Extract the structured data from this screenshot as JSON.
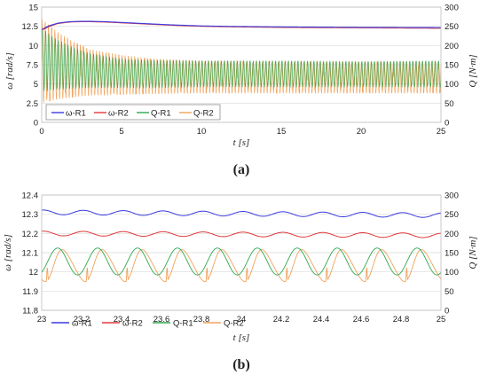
{
  "colors": {
    "omega_r1": "#3a3adf",
    "omega_r2": "#e0393a",
    "q_r1": "#2ea84f",
    "q_r2": "#f0a25a",
    "grid": "#d9d9d9"
  },
  "chart_data": [
    {
      "type": "line",
      "panel_label": "(a)",
      "xlabel": "t [s]",
      "ylabel_left": "ω [rad/s]",
      "ylabel_right": "Q [N·m]",
      "xlim": [
        0,
        25
      ],
      "ylim_left": [
        0,
        15
      ],
      "ylim_right": [
        0,
        300
      ],
      "x_ticks": [
        "0",
        "5",
        "10",
        "15",
        "20",
        "25"
      ],
      "y_left_ticks": [
        "0",
        "2.5",
        "5",
        "7.5",
        "10",
        "12.5",
        "15"
      ],
      "y_right_ticks": [
        "0",
        "50",
        "100",
        "150",
        "200",
        "250",
        "300"
      ],
      "grid": "horizontal",
      "legend_position": "bottom-left",
      "legend": [
        "ω-R1",
        "ω-R2",
        "Q-R1",
        "Q-R2"
      ],
      "series": [
        {
          "name": "ω-R1",
          "axis": "left",
          "x": [
            0,
            0.5,
            1,
            1.5,
            2,
            2.5,
            3,
            4,
            5,
            6,
            8,
            10,
            12,
            15,
            18,
            20,
            22,
            25
          ],
          "y": [
            12.1,
            12.6,
            12.9,
            13.05,
            13.12,
            13.15,
            13.15,
            13.1,
            13.0,
            12.9,
            12.7,
            12.55,
            12.48,
            12.42,
            12.38,
            12.36,
            12.35,
            12.33
          ]
        },
        {
          "name": "ω-R2",
          "axis": "left",
          "x": [
            0,
            0.5,
            1,
            1.5,
            2,
            2.5,
            3,
            4,
            5,
            6,
            8,
            10,
            12,
            15,
            18,
            20,
            22,
            25
          ],
          "y": [
            12.0,
            12.5,
            12.85,
            13.0,
            13.08,
            13.1,
            13.1,
            13.05,
            12.95,
            12.85,
            12.65,
            12.5,
            12.43,
            12.36,
            12.32,
            12.3,
            12.28,
            12.25
          ]
        },
        {
          "name": "Q-R1",
          "axis": "right",
          "envelope_t": [
            0,
            1,
            2,
            3,
            5,
            7,
            10,
            15,
            20,
            25
          ],
          "upper": [
            245,
            215,
            195,
            180,
            165,
            162,
            160,
            160,
            158,
            160
          ],
          "lower": [
            80,
            85,
            88,
            90,
            90,
            90,
            92,
            92,
            92,
            92
          ]
        },
        {
          "name": "Q-R2",
          "axis": "right",
          "envelope_t": [
            0,
            1,
            2,
            3,
            5,
            7,
            10,
            15,
            20,
            25
          ],
          "upper": [
            270,
            235,
            210,
            190,
            175,
            165,
            160,
            158,
            158,
            158
          ],
          "lower": [
            50,
            60,
            65,
            70,
            72,
            74,
            76,
            76,
            76,
            76
          ]
        }
      ]
    },
    {
      "type": "line",
      "panel_label": "(b)",
      "xlabel": "t [s]",
      "ylabel_left": "ω [rad/s]",
      "ylabel_right": "Q [N·m]",
      "xlim": [
        23,
        25
      ],
      "ylim_left": [
        11.8,
        12.4
      ],
      "ylim_right": [
        0,
        300
      ],
      "x_ticks": [
        "23",
        "23.2",
        "23.4",
        "23.6",
        "23.8",
        "24",
        "24.2",
        "24.4",
        "24.6",
        "24.8",
        "25"
      ],
      "y_left_ticks": [
        "11.8",
        "11.9",
        "12",
        "12.1",
        "12.2",
        "12.3",
        "12.4"
      ],
      "y_right_ticks": [
        "0",
        "50",
        "100",
        "150",
        "200",
        "250",
        "300"
      ],
      "grid": "horizontal",
      "legend_position": "bottom",
      "legend": [
        "ω-R1",
        "ω-R2",
        "Q-R1",
        "Q-R2"
      ],
      "oscillation_period_s": 0.2,
      "series": [
        {
          "name": "ω-R1",
          "axis": "left",
          "mean_start": 12.31,
          "mean_end": 12.295,
          "amplitude": 0.012
        },
        {
          "name": "ω-R2",
          "axis": "left",
          "mean_start": 12.2,
          "mean_end": 12.19,
          "amplitude": 0.012
        },
        {
          "name": "Q-R1",
          "axis": "right",
          "min": 92,
          "max": 162
        },
        {
          "name": "Q-R2",
          "axis": "right",
          "min": 75,
          "max": 158
        }
      ]
    }
  ]
}
